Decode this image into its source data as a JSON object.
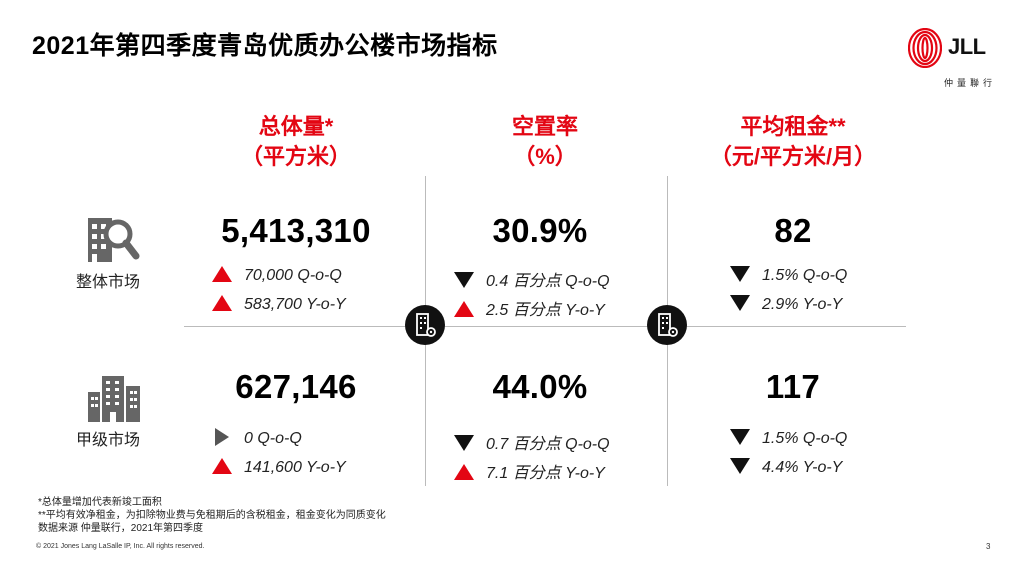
{
  "title": "2021年第四季度青岛优质办公楼市场指标",
  "logo": {
    "text": "JLL",
    "subtitle": "仲量聯行"
  },
  "columns": [
    {
      "label": "总体量*",
      "unit": "（平方米）"
    },
    {
      "label": "空置率",
      "unit": "（%）"
    },
    {
      "label": "平均租金**",
      "unit": "（元/平方米/月）"
    }
  ],
  "rows": [
    {
      "label": "整体市场",
      "cells": [
        {
          "value": "5,413,310",
          "changes": [
            {
              "dir": "up",
              "text": "70,000 Q-o-Q"
            },
            {
              "dir": "up",
              "text": "583,700 Y-o-Y"
            }
          ]
        },
        {
          "value": "30.9%",
          "changes": [
            {
              "dir": "down",
              "text": "0.4 百分点 Q-o-Q"
            },
            {
              "dir": "up",
              "text": "2.5 百分点 Y-o-Y"
            }
          ]
        },
        {
          "value": "82",
          "changes": [
            {
              "dir": "down",
              "text": "1.5% Q-o-Q"
            },
            {
              "dir": "down",
              "text": "2.9% Y-o-Y"
            }
          ]
        }
      ]
    },
    {
      "label": "甲级市场",
      "cells": [
        {
          "value": "627,146",
          "changes": [
            {
              "dir": "right",
              "text": "0 Q-o-Q"
            },
            {
              "dir": "up",
              "text": "141,600 Y-o-Y"
            }
          ]
        },
        {
          "value": "44.0%",
          "changes": [
            {
              "dir": "down",
              "text": "0.7 百分点 Q-o-Q"
            },
            {
              "dir": "up",
              "text": "7.1 百分点 Y-o-Y"
            }
          ]
        },
        {
          "value": "117",
          "changes": [
            {
              "dir": "down",
              "text": "1.5% Q-o-Q"
            },
            {
              "dir": "down",
              "text": "4.4% Y-o-Y"
            }
          ]
        }
      ]
    }
  ],
  "notes": [
    "*总体量增加代表新竣工面积",
    "**平均有效净租金，为扣除物业费与免租期后的含税租金，租金变化为同质变化",
    "数据来源 仲量联行，2021年第四季度"
  ],
  "footer": {
    "copyright": "© 2021 Jones Lang LaSalle IP, Inc. All rights reserved.",
    "page": "3"
  },
  "colors": {
    "accent": "#e30613",
    "down": "#111111",
    "neutral": "#555555",
    "grid": "#bbbbbb"
  },
  "icons": {
    "row1": "building-search-icon",
    "row2": "office-buildings-icon",
    "divider": "building-gear-icon"
  }
}
